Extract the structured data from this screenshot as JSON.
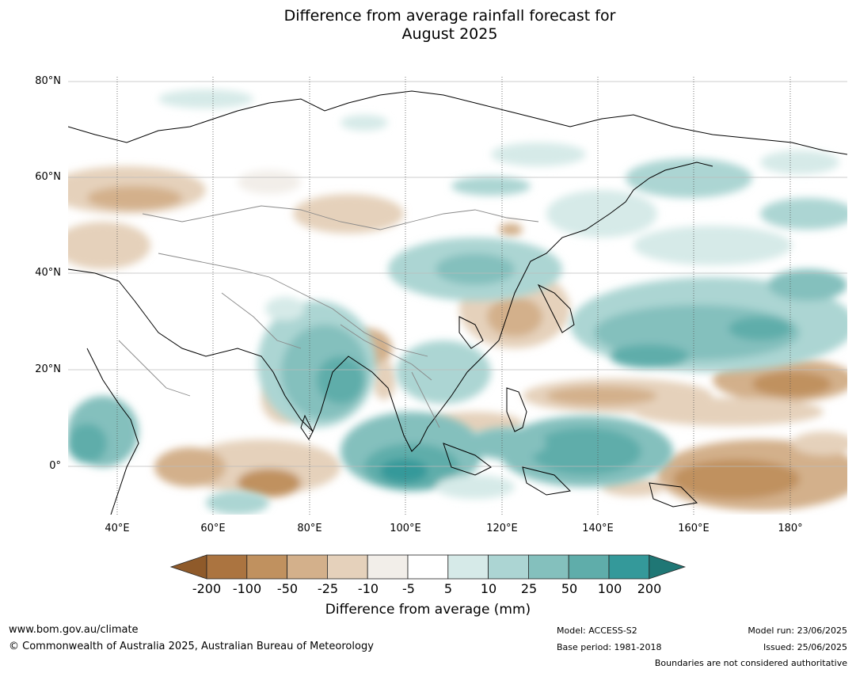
{
  "title_line1": "Difference from average rainfall forecast for",
  "title_line2": "August 2025",
  "lat_labels": [
    "80°N",
    "60°N",
    "40°N",
    "20°N",
    "0°"
  ],
  "lon_labels": [
    "40°E",
    "60°E",
    "80°E",
    "100°E",
    "120°E",
    "140°E",
    "160°E",
    "180°"
  ],
  "legend": {
    "title": "Difference from average (mm)",
    "ticks": [
      "-200",
      "-100",
      "-50",
      "-25",
      "-10",
      "-5",
      "5",
      "10",
      "25",
      "50",
      "100",
      "200"
    ],
    "colors": [
      "#8f5a2a",
      "#ab7440",
      "#c0915f",
      "#d3b08b",
      "#e5d1bb",
      "#f2eee9",
      "#ffffff",
      "#d6eae8",
      "#acd5d3",
      "#84c0bd",
      "#5fadaa",
      "#34999a",
      "#1f7775"
    ]
  },
  "footer": {
    "website": "www.bom.gov.au/climate",
    "copyright": "© Commonwealth of Australia 2025, Australian Bureau of Meteorology",
    "model": "Model: ACCESS-S2",
    "base_period": "Base period: 1981-2018",
    "model_run": "Model run: 23/06/2025",
    "issued": "Issued: 25/06/2025",
    "disclaimer": "Boundaries are not considered authoritative"
  }
}
